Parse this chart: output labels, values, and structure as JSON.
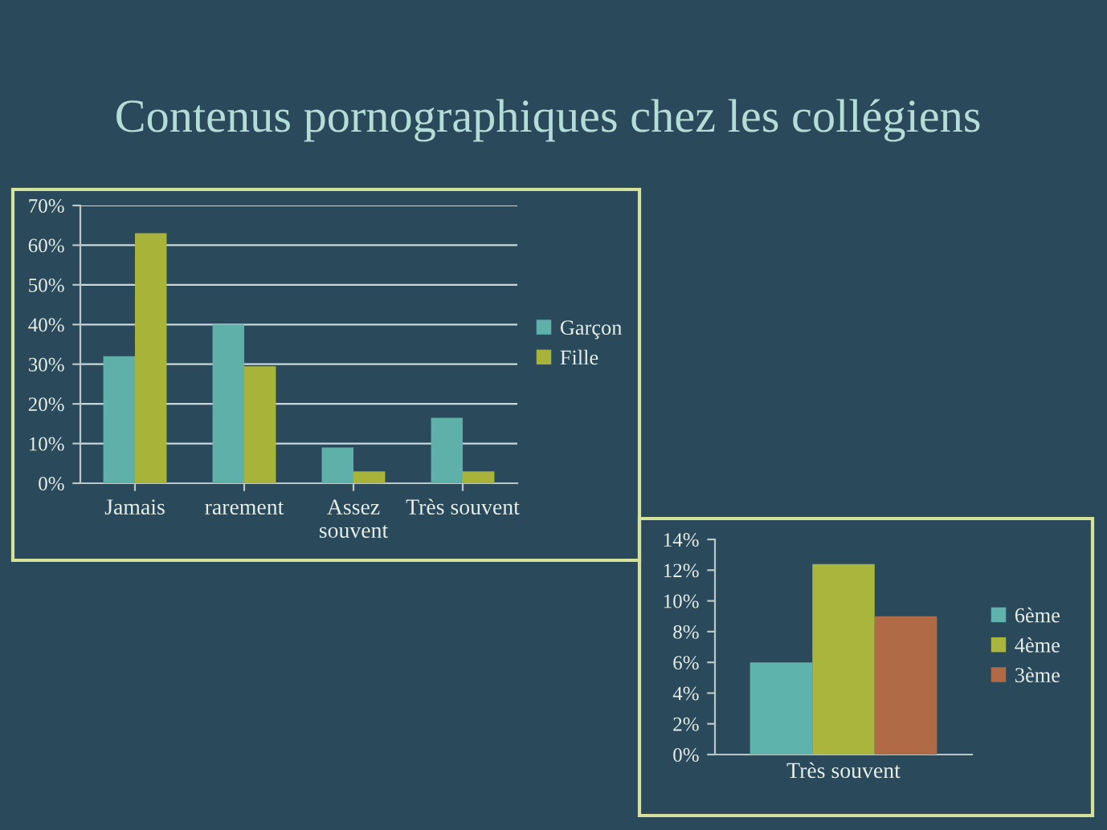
{
  "chart_data": [
    {
      "type": "bar",
      "title": "Contenus pornographiques chez les collégiens",
      "categories": [
        "Jamais",
        "rarement",
        "Assez souvent",
        "Très souvent"
      ],
      "series": [
        {
          "name": "Garçon",
          "color": "#5fb0a8",
          "values": [
            32,
            40,
            9,
            16.5
          ]
        },
        {
          "name": "Fille",
          "color": "#a8b33a",
          "values": [
            63,
            29.5,
            3,
            3
          ]
        }
      ],
      "ylim": [
        0,
        70
      ],
      "yticks": [
        {
          "value": 0,
          "label": "0%"
        },
        {
          "value": 10,
          "label": "10%"
        },
        {
          "value": 20,
          "label": "20%"
        },
        {
          "value": 30,
          "label": "30%"
        },
        {
          "value": 40,
          "label": "40%"
        },
        {
          "value": 50,
          "label": "50%"
        },
        {
          "value": 60,
          "label": "60%"
        },
        {
          "value": 70,
          "label": "70%"
        }
      ],
      "grid": "y",
      "legend": "right"
    },
    {
      "type": "bar",
      "categories": [
        "Très souvent"
      ],
      "series": [
        {
          "name": "6ème",
          "color": "#5fb3ad",
          "values": [
            6
          ]
        },
        {
          "name": "4ème",
          "color": "#a9b53c",
          "values": [
            12.4
          ]
        },
        {
          "name": "3ème",
          "color": "#b06a45",
          "values": [
            9
          ]
        }
      ],
      "ylim": [
        0,
        14
      ],
      "yticks": [
        {
          "value": 0,
          "label": "0%"
        },
        {
          "value": 2,
          "label": "2%"
        },
        {
          "value": 4,
          "label": "4%"
        },
        {
          "value": 6,
          "label": "6%"
        },
        {
          "value": 8,
          "label": "8%"
        },
        {
          "value": 10,
          "label": "10%"
        },
        {
          "value": 12,
          "label": "12%"
        },
        {
          "value": 14,
          "label": "14%"
        }
      ],
      "grid": false,
      "legend": "right"
    }
  ]
}
